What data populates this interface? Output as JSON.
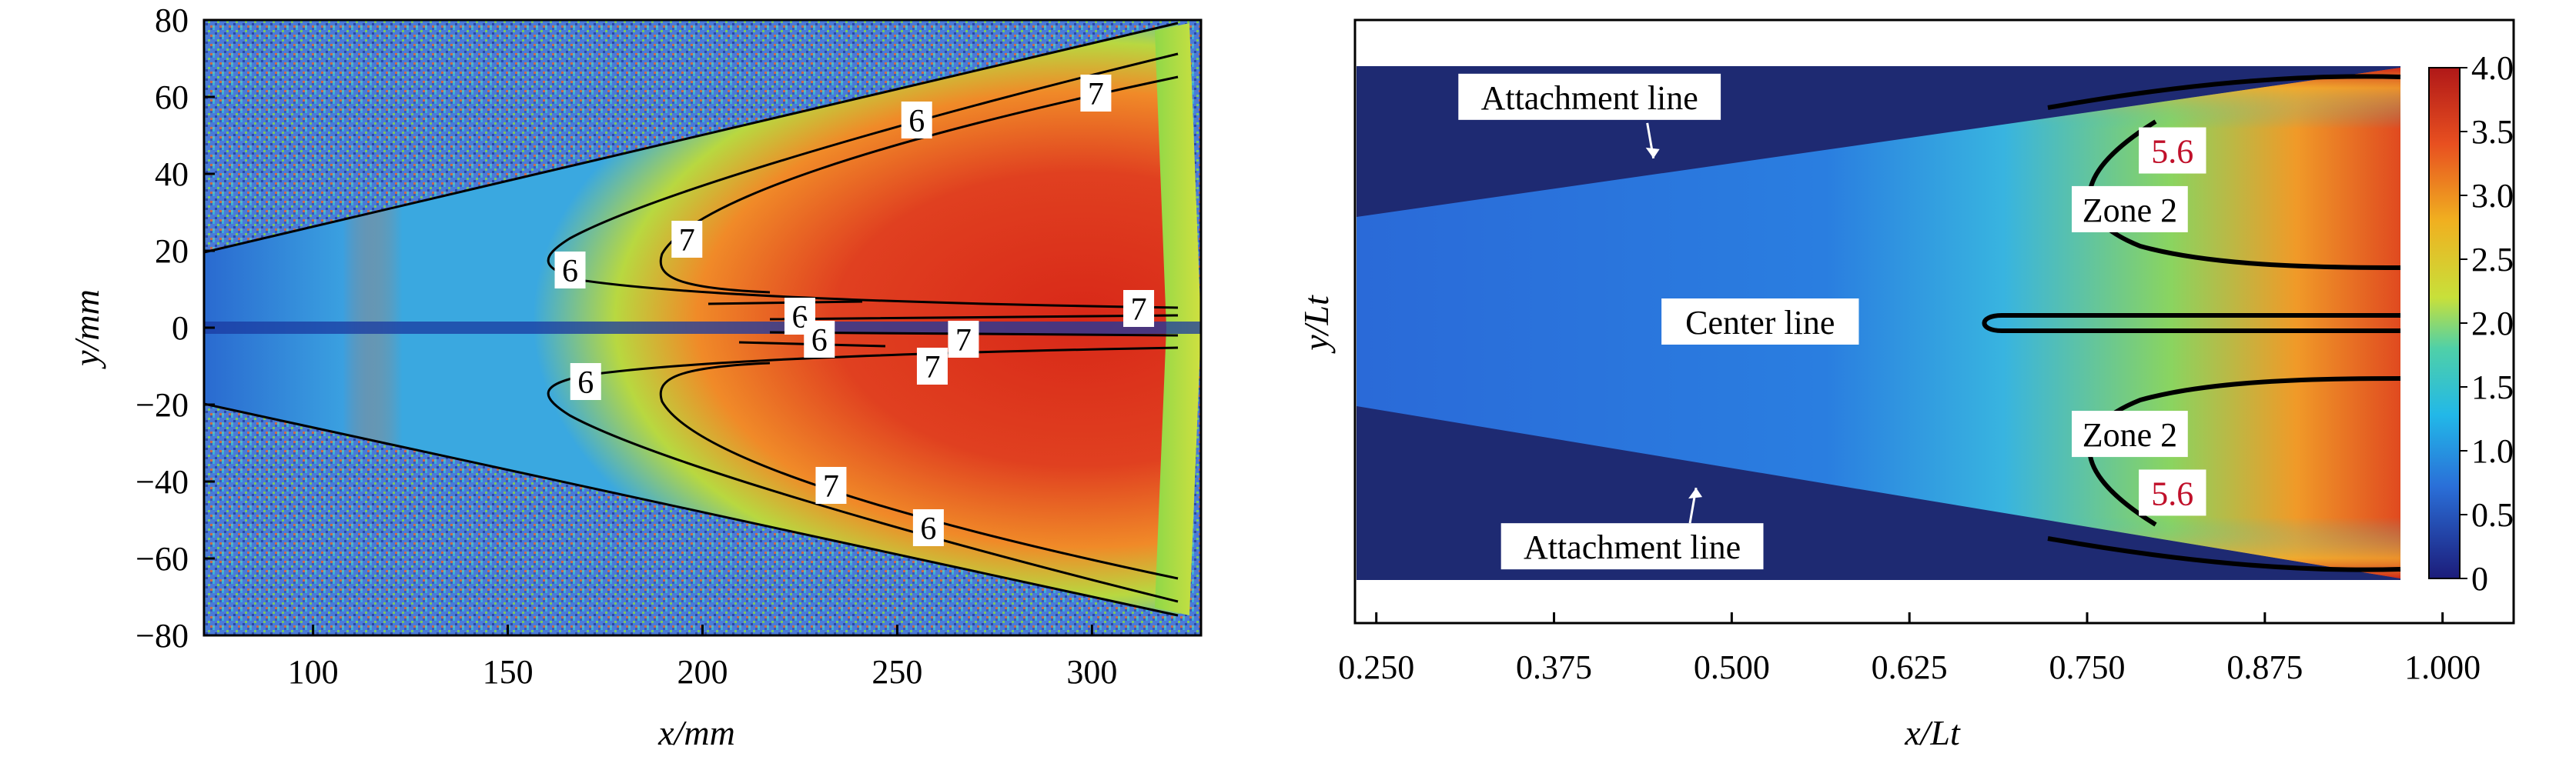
{
  "chart_data": [
    {
      "type": "heatmap",
      "panel": "left",
      "xlabel": "x/mm",
      "ylabel": "y/mm",
      "xlim": [
        72,
        328
      ],
      "ylim": [
        -80,
        80
      ],
      "x_ticks": [
        100,
        150,
        200,
        250,
        300
      ],
      "x_tick_labels": [
        "100",
        "150",
        "200",
        "250",
        "300"
      ],
      "y_ticks": [
        80,
        60,
        40,
        20,
        0,
        -20,
        -40,
        -60,
        -80
      ],
      "y_tick_labels": [
        "80",
        "60",
        "40",
        "20",
        "0",
        "−20",
        "−40",
        "−60",
        "−80"
      ],
      "grid": false,
      "contour_labels": [
        {
          "text": "6",
          "x": 255,
          "y": 54
        },
        {
          "text": "7",
          "x": 301,
          "y": 61
        },
        {
          "text": "7",
          "x": 196,
          "y": 23
        },
        {
          "text": "6",
          "x": 166,
          "y": 15
        },
        {
          "text": "6",
          "x": 225,
          "y": 3
        },
        {
          "text": "7",
          "x": 312,
          "y": 5
        },
        {
          "text": "6",
          "x": 230,
          "y": -3
        },
        {
          "text": "7",
          "x": 267,
          "y": -3
        },
        {
          "text": "7",
          "x": 259,
          "y": -10
        },
        {
          "text": "6",
          "x": 170,
          "y": -14
        },
        {
          "text": "7",
          "x": 233,
          "y": -41
        },
        {
          "text": "6",
          "x": 258,
          "y": -52
        }
      ]
    },
    {
      "type": "heatmap",
      "panel": "right",
      "xlabel": "x/Lt",
      "ylabel": "y/Lt",
      "xlim": [
        0.235,
        1.05
      ],
      "x_ticks": [
        0.25,
        0.375,
        0.5,
        0.625,
        0.75,
        0.875,
        1.0
      ],
      "x_tick_labels": [
        "0.250",
        "0.375",
        "0.500",
        "0.625",
        "0.750",
        "0.875",
        "1.000"
      ],
      "colorbar": {
        "min": 0,
        "max": 4,
        "ticks": [
          4.0,
          3.5,
          3.0,
          2.5,
          2.0,
          1.5,
          1.0,
          0.5,
          0
        ],
        "tick_labels": [
          "4.0",
          "3.5",
          "3.0",
          "2.5",
          "2.0",
          "1.5",
          "1.0",
          "0.5",
          "0"
        ],
        "colors": [
          "#1c1c7a",
          "#2a6fd8",
          "#22b8e8",
          "#4fd0a8",
          "#c8e03a",
          "#f0b020",
          "#e85020",
          "#b01818"
        ]
      },
      "annotations": [
        {
          "text": "Attachment line",
          "x": 0.4,
          "y": 0.88,
          "arrow": true
        },
        {
          "text": "5.6",
          "x": 0.81,
          "y": 0.67,
          "color": "#c0102a"
        },
        {
          "text": "Zone 2",
          "x": 0.78,
          "y": 0.44
        },
        {
          "text": "Center line",
          "x": 0.52,
          "y": 0.0
        },
        {
          "text": "Zone 2",
          "x": 0.78,
          "y": -0.44
        },
        {
          "text": "5.6",
          "x": 0.81,
          "y": -0.67,
          "color": "#c0102a"
        },
        {
          "text": "Attachment line",
          "x": 0.43,
          "y": -0.88,
          "arrow": true
        }
      ],
      "grid": false
    }
  ]
}
